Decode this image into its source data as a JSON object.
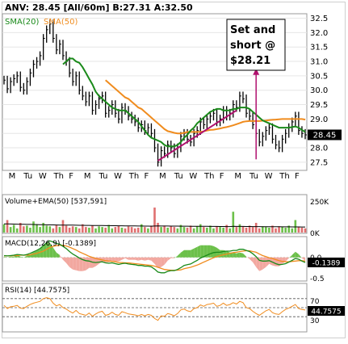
{
  "header": {
    "title": "ANV: 28.45 [All/60m]  B:27.31 A:32.50"
  },
  "annotation": {
    "line1": "Set and",
    "line2": "short @",
    "line3": "$28.21",
    "color": "#b0106e"
  },
  "colors": {
    "price": "#000000",
    "sma20": "#1a8a1a",
    "sma50": "#f08c1e",
    "trend": "#b0106e",
    "volume_up": "#6cc04a",
    "volume_down": "#e07070",
    "ema_line": "#000000",
    "macd_hist_pos": "#6cc04a",
    "macd_hist_neg": "#f2a8a0",
    "rsi_line": "#f08c1e",
    "price_tag_bg": "#000000",
    "price_tag_text": "#ffffff"
  },
  "chart_data": [
    {
      "type": "line",
      "panel": "price",
      "legend": [
        "SMA(20)",
        "SMA(50)"
      ],
      "y_tick_labels": [
        "32.5",
        "32.0",
        "31.5",
        "31.0",
        "30.5",
        "30.0",
        "29.5",
        "29.0",
        "28.5",
        "28.0",
        "27.5"
      ],
      "ylim": [
        27.3,
        32.6
      ],
      "x_day_labels": [
        "M",
        "Tu",
        "W",
        "Th",
        "F",
        "M",
        "Tu",
        "W",
        "Th",
        "F",
        "M",
        "Tu",
        "W",
        "Th",
        "F",
        "M",
        "Tu",
        "W",
        "Th",
        "F"
      ],
      "last_price_label": "28.45",
      "last_price": 28.45,
      "series": [
        {
          "name": "Price",
          "values": [
            30.35,
            30.05,
            30.3,
            30.4,
            30.5,
            30.1,
            30.0,
            30.3,
            30.6,
            30.9,
            31.0,
            31.2,
            31.8,
            32.1,
            32.3,
            31.8,
            31.4,
            31.6,
            31.2,
            31.0,
            30.6,
            30.3,
            30.5,
            30.0,
            29.8,
            29.6,
            29.8,
            29.3,
            29.5,
            29.7,
            29.8,
            29.2,
            29.3,
            29.5,
            29.2,
            29.0,
            29.4,
            29.3,
            29.1,
            29.0,
            28.9,
            28.7,
            28.8,
            28.6,
            28.7,
            28.5,
            28.0,
            27.5,
            27.9,
            27.8,
            28.1,
            28.0,
            27.8,
            28.0,
            28.4,
            28.5,
            28.3,
            28.2,
            28.5,
            28.6,
            28.9,
            28.8,
            29.0,
            29.1,
            29.2,
            28.9,
            29.0,
            29.3,
            29.1,
            29.2,
            29.5,
            29.4,
            29.8,
            29.7,
            29.2,
            29.1,
            28.8,
            28.5,
            28.2,
            28.4,
            28.6,
            28.7,
            28.3,
            28.1,
            28.0,
            28.3,
            28.5,
            28.7,
            28.9,
            29.1,
            28.6,
            28.5,
            28.45
          ]
        },
        {
          "name": "SMA(20)",
          "values": [
            null,
            null,
            null,
            null,
            null,
            null,
            null,
            null,
            null,
            null,
            null,
            null,
            null,
            null,
            null,
            null,
            null,
            null,
            30.9,
            31.0,
            31.1,
            31.1,
            31.0,
            30.95,
            30.8,
            30.6,
            30.4,
            30.2,
            29.95,
            29.8,
            29.7,
            29.6,
            29.5,
            29.4,
            29.35,
            29.3,
            29.3,
            29.3,
            29.2,
            29.1,
            29.0,
            28.9,
            28.75,
            28.6,
            28.45,
            28.35,
            28.3,
            28.25,
            28.2,
            28.1,
            28.05,
            28.05,
            28.05,
            28.1,
            28.2,
            28.35,
            28.45,
            28.6,
            28.7,
            28.85,
            28.95,
            29.05,
            29.15,
            29.25,
            29.3,
            29.35,
            29.35,
            29.3,
            29.3,
            29.3,
            29.35,
            29.35,
            29.4,
            29.4,
            29.4,
            29.35,
            29.25,
            29.15,
            29.05,
            28.95,
            28.9,
            28.85,
            28.8,
            28.75,
            28.7,
            28.7,
            28.7,
            28.7,
            28.72,
            28.74,
            28.7,
            28.62,
            28.55
          ]
        },
        {
          "name": "SMA(50)",
          "values": [
            null,
            null,
            null,
            null,
            null,
            null,
            null,
            null,
            null,
            null,
            null,
            null,
            null,
            null,
            null,
            null,
            null,
            null,
            null,
            null,
            null,
            null,
            null,
            null,
            null,
            null,
            null,
            null,
            null,
            null,
            null,
            30.35,
            30.25,
            30.15,
            30.05,
            29.95,
            29.85,
            29.75,
            29.7,
            29.6,
            29.5,
            29.4,
            29.35,
            29.25,
            29.15,
            29.05,
            28.95,
            28.85,
            28.75,
            28.65,
            28.58,
            28.55,
            28.52,
            28.5,
            28.5,
            28.52,
            28.55,
            28.55,
            28.55,
            28.55,
            28.55,
            28.57,
            28.6,
            28.62,
            28.63,
            28.65,
            28.67,
            28.7,
            28.72,
            28.75,
            28.78,
            28.82,
            28.86,
            28.9,
            28.92,
            28.93,
            28.93,
            28.93,
            28.93,
            28.94,
            28.95,
            28.96,
            28.97,
            28.98,
            28.99,
            29.0,
            29.0,
            29.0,
            29.0,
            29.0,
            29.0,
            29.0,
            28.98
          ]
        },
        {
          "name": "Trendline",
          "values": [
            {
              "x": 47,
              "y": 27.55
            },
            {
              "x": 71,
              "y": 29.3
            }
          ]
        }
      ],
      "entry_marker": {
        "x": 77,
        "y_from": 27.6,
        "y_to": 30.7
      }
    },
    {
      "type": "bar",
      "panel": "volume",
      "title": "Volume+EMA(50)  [537,591]",
      "y_tick_labels": [
        "250K",
        "0K"
      ],
      "ylim": [
        0,
        250000
      ],
      "values": [
        60000,
        90000,
        40000,
        55000,
        30000,
        70000,
        45000,
        50000,
        35000,
        80000,
        60000,
        40000,
        70000,
        50000,
        45000,
        30000,
        55000,
        40000,
        90000,
        50000,
        35000,
        45000,
        40000,
        30000,
        60000,
        40000,
        35000,
        50000,
        30000,
        45000,
        40000,
        35000,
        55000,
        30000,
        40000,
        50000,
        35000,
        30000,
        45000,
        40000,
        30000,
        35000,
        60000,
        40000,
        30000,
        50000,
        180000,
        70000,
        40000,
        50000,
        35000,
        45000,
        40000,
        30000,
        55000,
        40000,
        35000,
        50000,
        30000,
        45000,
        60000,
        40000,
        35000,
        50000,
        30000,
        45000,
        40000,
        35000,
        55000,
        30000,
        150000,
        40000,
        60000,
        45000,
        35000,
        50000,
        40000,
        70000,
        30000,
        45000,
        40000,
        35000,
        50000,
        30000,
        45000,
        40000,
        35000,
        50000,
        30000,
        90000,
        40000,
        35000,
        30000
      ],
      "ema": [
        62000,
        62000,
        61500,
        61000,
        60500,
        60000,
        59500,
        59000,
        58500,
        58000,
        57500,
        57000,
        56500,
        56000,
        55500,
        55000,
        54500,
        54000,
        53800,
        53600,
        53400,
        53200,
        53000,
        52600,
        52300,
        52000,
        51700,
        51400,
        51100,
        50800,
        50500,
        50200,
        49900,
        49600,
        49300,
        49000,
        48700,
        48400,
        48100,
        47800,
        47500,
        47200,
        46900,
        46600,
        46300,
        46000,
        47000,
        47500,
        47300,
        47100,
        46900,
        46700,
        46500,
        46300,
        46100,
        45900,
        45700,
        45500,
        45300,
        45100,
        44900,
        44700,
        44500,
        44300,
        44100,
        43900,
        43700,
        43500,
        43300,
        43100,
        44500,
        44300,
        44100,
        43900,
        43700,
        43500,
        43300,
        43100,
        42900,
        42700,
        42500,
        42300,
        42100,
        41900,
        41700,
        41500,
        41300,
        41100,
        40900,
        40700,
        40500,
        40300,
        40100
      ]
    },
    {
      "type": "line",
      "panel": "macd",
      "title": "MACD(12,26,9)  [-0.1389]",
      "y_tick_labels": [
        "0.0",
        "-0.5"
      ],
      "last_value_label": "-0.1389",
      "ylim": [
        -0.6,
        0.5
      ],
      "series": [
        {
          "name": "MACD",
          "values": [
            0.05,
            0.04,
            0.05,
            0.06,
            0.08,
            0.07,
            0.06,
            0.08,
            0.11,
            0.15,
            0.19,
            0.24,
            0.32,
            0.4,
            0.45,
            0.42,
            0.38,
            0.36,
            0.3,
            0.24,
            0.16,
            0.09,
            0.04,
            -0.02,
            -0.06,
            -0.09,
            -0.1,
            -0.13,
            -0.14,
            -0.13,
            -0.12,
            -0.15,
            -0.16,
            -0.15,
            -0.17,
            -0.19,
            -0.17,
            -0.16,
            -0.18,
            -0.19,
            -0.2,
            -0.22,
            -0.22,
            -0.24,
            -0.24,
            -0.26,
            -0.32,
            -0.4,
            -0.42,
            -0.42,
            -0.38,
            -0.36,
            -0.36,
            -0.33,
            -0.28,
            -0.22,
            -0.2,
            -0.18,
            -0.13,
            -0.08,
            -0.02,
            0.02,
            0.06,
            0.1,
            0.13,
            0.14,
            0.14,
            0.16,
            0.17,
            0.17,
            0.19,
            0.19,
            0.22,
            0.22,
            0.19,
            0.16,
            0.1,
            0.02,
            -0.08,
            -0.1,
            -0.1,
            -0.09,
            -0.13,
            -0.17,
            -0.2,
            -0.19,
            -0.17,
            -0.13,
            -0.08,
            -0.03,
            -0.05,
            -0.1,
            -0.1389
          ]
        },
        {
          "name": "Signal",
          "values": [
            0.04,
            0.04,
            0.04,
            0.05,
            0.05,
            0.06,
            0.06,
            0.06,
            0.07,
            0.09,
            0.11,
            0.14,
            0.17,
            0.22,
            0.27,
            0.3,
            0.32,
            0.33,
            0.33,
            0.31,
            0.28,
            0.24,
            0.2,
            0.15,
            0.11,
            0.07,
            0.03,
            0.0,
            -0.03,
            -0.05,
            -0.07,
            -0.09,
            -0.1,
            -0.11,
            -0.12,
            -0.14,
            -0.14,
            -0.15,
            -0.15,
            -0.16,
            -0.17,
            -0.18,
            -0.19,
            -0.2,
            -0.21,
            -0.22,
            -0.24,
            -0.27,
            -0.3,
            -0.33,
            -0.34,
            -0.35,
            -0.35,
            -0.35,
            -0.34,
            -0.31,
            -0.29,
            -0.27,
            -0.24,
            -0.21,
            -0.17,
            -0.13,
            -0.09,
            -0.05,
            -0.01,
            0.02,
            0.05,
            0.07,
            0.09,
            0.11,
            0.13,
            0.14,
            0.16,
            0.17,
            0.18,
            0.18,
            0.16,
            0.14,
            0.09,
            0.05,
            0.02,
            -0.01,
            -0.03,
            -0.06,
            -0.09,
            -0.11,
            -0.12,
            -0.12,
            -0.11,
            -0.1,
            -0.09,
            -0.09,
            -0.1
          ]
        }
      ]
    },
    {
      "type": "line",
      "panel": "rsi",
      "title": "RSI(14)  [44.7575]",
      "y_tick_labels": [
        "70",
        "50",
        "30"
      ],
      "last_value_label": "44.7575",
      "ylim": [
        0,
        100
      ],
      "series": [
        {
          "name": "RSI",
          "values": [
            55,
            48,
            52,
            53,
            55,
            49,
            48,
            53,
            57,
            60,
            62,
            64,
            70,
            72,
            70,
            60,
            54,
            57,
            50,
            47,
            42,
            38,
            44,
            37,
            35,
            33,
            38,
            31,
            36,
            40,
            42,
            33,
            35,
            40,
            35,
            33,
            41,
            39,
            36,
            35,
            34,
            32,
            35,
            32,
            35,
            33,
            26,
            22,
            32,
            31,
            37,
            35,
            32,
            37,
            45,
            47,
            43,
            41,
            48,
            50,
            56,
            53,
            57,
            58,
            60,
            53,
            55,
            60,
            55,
            57,
            61,
            58,
            64,
            61,
            50,
            48,
            42,
            37,
            33,
            38,
            43,
            46,
            39,
            36,
            35,
            41,
            46,
            49,
            53,
            57,
            48,
            46,
            44.7575
          ]
        }
      ]
    }
  ]
}
